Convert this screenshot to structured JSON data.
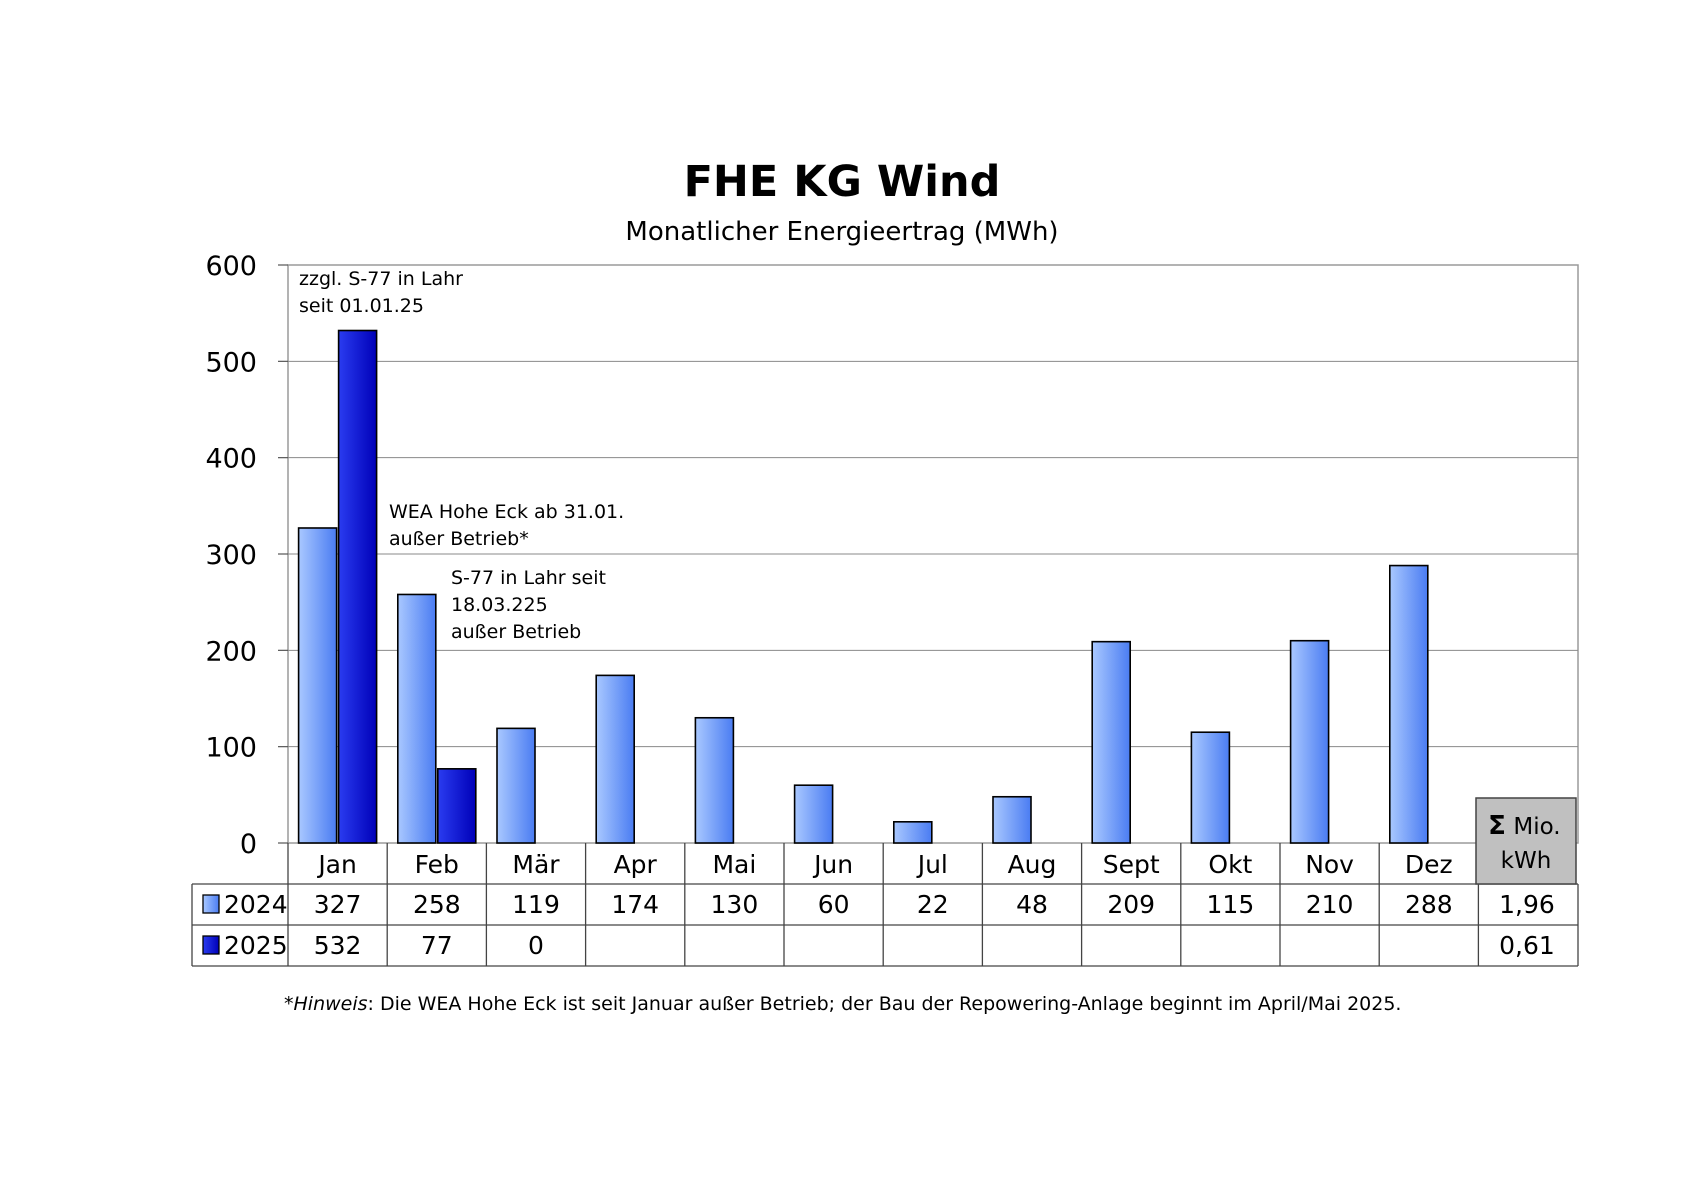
{
  "chart_data": {
    "type": "bar",
    "title": "FHE KG Wind",
    "subtitle": "Monatlicher Energieertrag (MWh)",
    "xlabel": "",
    "ylabel": "",
    "ylim": [
      0,
      600
    ],
    "yticks": [
      "0",
      "100",
      "200",
      "300",
      "400",
      "500",
      "600"
    ],
    "grid": true,
    "categories": [
      "Jan",
      "Feb",
      "Mär",
      "Apr",
      "Mai",
      "Jun",
      "Jul",
      "Aug",
      "Sept",
      "Okt",
      "Nov",
      "Dez"
    ],
    "series": [
      {
        "name": "2024",
        "values": [
          327,
          258,
          119,
          174,
          130,
          60,
          22,
          48,
          209,
          115,
          210,
          288
        ],
        "labels": [
          "327",
          "258",
          "119",
          "174",
          "130",
          "60",
          "22",
          "48",
          "209",
          "115",
          "210",
          "288"
        ],
        "total": "1,96",
        "color": "#4a7cf2",
        "color_light": "#a9c8ff"
      },
      {
        "name": "2025",
        "values": [
          532,
          77,
          0,
          null,
          null,
          null,
          null,
          null,
          null,
          null,
          null,
          null
        ],
        "labels": [
          "532",
          "77",
          "0",
          "",
          "",
          "",
          "",
          "",
          "",
          "",
          "",
          ""
        ],
        "total": "0,61",
        "color": "#0000b8",
        "color_light": "#2a3cf0"
      }
    ],
    "sum_header_symbol": "Σ",
    "sum_header_line1": "Mio.",
    "sum_header_line2": "kWh",
    "annotations": [
      {
        "lines": [
          "zzgl. S-77 in Lahr",
          "seit 01.01.25"
        ]
      },
      {
        "lines": [
          "WEA Hohe Eck ab 31.01.",
          "außer Betrieb*"
        ]
      },
      {
        "lines": [
          "S-77 in Lahr seit",
          "18.03.225",
          "außer Betrieb"
        ]
      }
    ],
    "footnote_italic": "*Hinweis",
    "footnote_text": ": Die WEA Hohe Eck ist seit Januar außer Betrieb; der Bau der Repowering-Anlage beginnt im April/Mai 2025."
  }
}
